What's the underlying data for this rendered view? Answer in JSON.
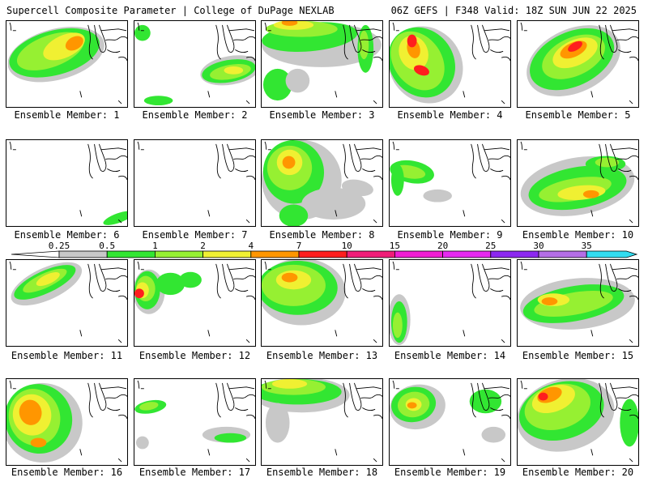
{
  "header": {
    "left": "Supercell Composite Parameter | College of DuPage NEXLAB",
    "right": "06Z GEFS | F348 Valid: 18Z SUN JUN 22 2025"
  },
  "colorbar": {
    "labels": [
      "0.25",
      "0.5",
      "1",
      "2",
      "4",
      "7",
      "10",
      "15",
      "20",
      "25",
      "30",
      "35"
    ],
    "colors": [
      "#c8c8c8",
      "#32e632",
      "#96f032",
      "#f0f032",
      "#ff9600",
      "#ff1e1e",
      "#f01e78",
      "#f01ed2",
      "#e628f0",
      "#8c28f0",
      "#b46ee6",
      "#32dcf0"
    ],
    "colorbar_end_color": "#b4b4b4"
  },
  "members": [
    {
      "label": "Ensemble Member: 1"
    },
    {
      "label": "Ensemble Member: 2"
    },
    {
      "label": "Ensemble Member: 3"
    },
    {
      "label": "Ensemble Member: 4"
    },
    {
      "label": "Ensemble Member: 5"
    },
    {
      "label": "Ensemble Member: 6"
    },
    {
      "label": "Ensemble Member: 7"
    },
    {
      "label": "Ensemble Member: 8"
    },
    {
      "label": "Ensemble Member: 9"
    },
    {
      "label": "Ensemble Member: 10"
    },
    {
      "label": "Ensemble Member: 11"
    },
    {
      "label": "Ensemble Member: 12"
    },
    {
      "label": "Ensemble Member: 13"
    },
    {
      "label": "Ensemble Member: 14"
    },
    {
      "label": "Ensemble Member: 15"
    },
    {
      "label": "Ensemble Member: 16"
    },
    {
      "label": "Ensemble Member: 17"
    },
    {
      "label": "Ensemble Member: 18"
    },
    {
      "label": "Ensemble Member: 19"
    },
    {
      "label": "Ensemble Member: 20"
    }
  ]
}
